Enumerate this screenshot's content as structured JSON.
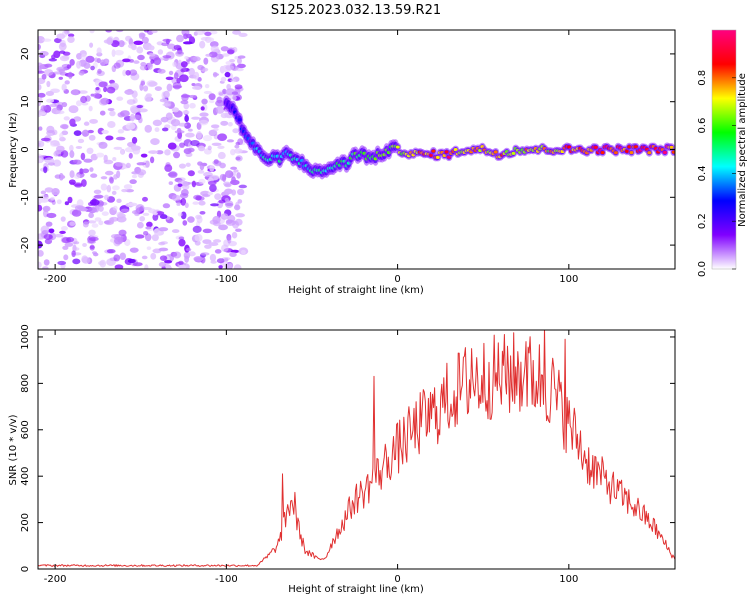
{
  "title": "S125.2023.032.13.59.R21",
  "chart_data": [
    {
      "type": "heatmap",
      "xlabel": "Height of straight line (km)",
      "ylabel": "Frequency (Hz)",
      "xlim": [
        -210,
        162
      ],
      "ylim": [
        -25,
        25
      ],
      "x_ticks": [
        -200,
        -100,
        0,
        100
      ],
      "y_ticks": [
        -20,
        -10,
        0,
        10,
        20
      ],
      "colorbar": {
        "label": "Normalized spectral amplitude",
        "range": [
          0,
          1
        ],
        "ticks": [
          "0.0",
          "0.2",
          "0.4",
          "0.6",
          "0.8"
        ],
        "colors": [
          "#ffffff",
          "#8000ff",
          "#0000ff",
          "#00ffff",
          "#00ff00",
          "#ffff00",
          "#ff0000",
          "#ff0080"
        ]
      },
      "noise_region_x": [
        -210,
        -90
      ],
      "ridge": {
        "x": [
          -100,
          -95,
          -90,
          -85,
          -80,
          -75,
          -70,
          -65,
          -60,
          -55,
          -50,
          -45,
          -40,
          -35,
          -30,
          -25,
          -20,
          -15,
          -10,
          -5,
          0,
          10,
          20,
          30,
          40,
          50,
          60,
          70,
          80,
          90,
          100,
          110,
          120,
          130,
          140,
          150,
          160
        ],
        "y": [
          10,
          8,
          4,
          1,
          -1,
          -2,
          -2,
          -1,
          -2,
          -3,
          -4,
          -5,
          -4,
          -3,
          -3,
          -1,
          -1,
          -2,
          -1,
          0,
          0,
          -1,
          -1,
          -1,
          0,
          0,
          -1,
          0,
          0,
          0,
          0,
          0,
          0,
          0,
          0,
          0,
          0
        ],
        "amplitude": [
          0.2,
          0.25,
          0.3,
          0.35,
          0.4,
          0.45,
          0.45,
          0.45,
          0.45,
          0.4,
          0.45,
          0.45,
          0.45,
          0.5,
          0.5,
          0.55,
          0.55,
          0.55,
          0.6,
          0.6,
          0.65,
          0.75,
          0.8,
          0.85,
          0.7,
          0.75,
          0.75,
          0.7,
          0.75,
          0.7,
          0.8,
          0.85,
          0.88,
          0.88,
          0.88,
          0.88,
          0.88
        ]
      }
    },
    {
      "type": "line",
      "xlabel": "Height of straight line (km)",
      "ylabel": "SNR (10 * v/v)",
      "xlim": [
        -210,
        162
      ],
      "ylim": [
        0,
        1030
      ],
      "x_ticks": [
        -200,
        -100,
        0,
        100
      ],
      "y_ticks": [
        0,
        200,
        400,
        600,
        800,
        1000
      ],
      "color": "#e03030",
      "x": [
        -210,
        -150,
        -100,
        -82,
        -75,
        -70,
        -66,
        -62,
        -58,
        -54,
        -50,
        -46,
        -42,
        -38,
        -34,
        -30,
        -25,
        -20,
        -15,
        -10,
        -5,
        0,
        5,
        10,
        15,
        20,
        30,
        40,
        50,
        60,
        70,
        80,
        90,
        100,
        105,
        110,
        120,
        130,
        140,
        150,
        162
      ],
      "y": [
        15,
        15,
        15,
        15,
        60,
        100,
        200,
        300,
        180,
        80,
        60,
        40,
        50,
        120,
        170,
        230,
        300,
        330,
        380,
        420,
        480,
        520,
        560,
        600,
        640,
        660,
        740,
        800,
        820,
        830,
        840,
        830,
        780,
        620,
        560,
        470,
        390,
        320,
        260,
        180,
        40
      ],
      "peaks": [
        {
          "x": -67,
          "y": 410
        },
        {
          "x": -60,
          "y": 330
        },
        {
          "x": -14,
          "y": 830
        },
        {
          "x": 43,
          "y": 950
        },
        {
          "x": 64,
          "y": 960
        },
        {
          "x": 75,
          "y": 980
        },
        {
          "x": 86,
          "y": 1040
        },
        {
          "x": 98,
          "y": 990
        }
      ]
    }
  ]
}
